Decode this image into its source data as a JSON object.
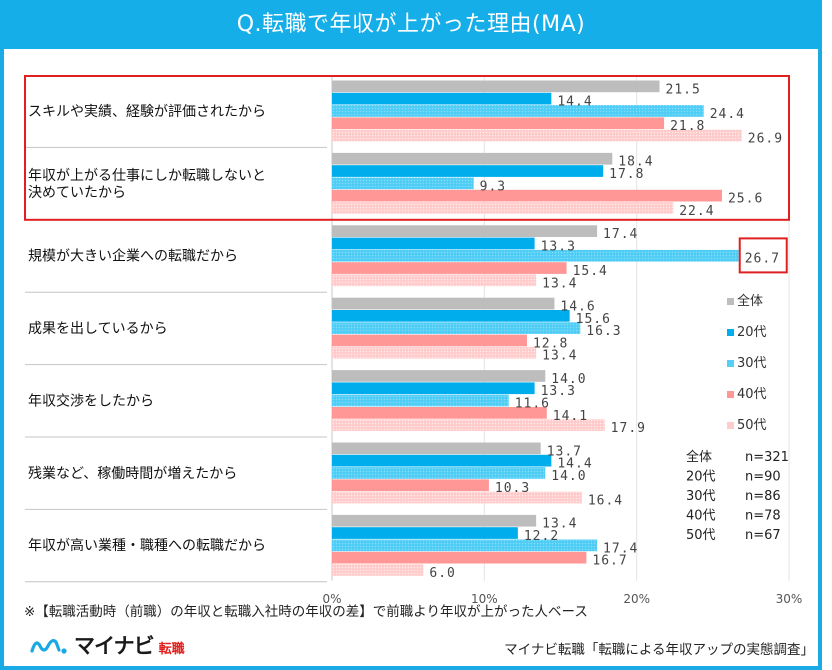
{
  "header": {
    "title": "Q.転職で年収が上がった理由(MA)"
  },
  "chart_data": {
    "type": "bar",
    "orientation": "horizontal",
    "title": "Q.転職で年収が上がった理由(MA)",
    "xlabel": "",
    "ylabel": "",
    "xlim": [
      0,
      30
    ],
    "x_ticks": [
      "0%",
      "10%",
      "20%",
      "30%"
    ],
    "x_tick_values": [
      0,
      10,
      20,
      30
    ],
    "grid": true,
    "legend_position": "right",
    "categories": [
      "スキルや実績、経験が評価されたから",
      "年収が上がる仕事にしか転職しないと\n決めていたから",
      "規模が大きい企業への転職だから",
      "成果を出しているから",
      "年収交渉をしたから",
      "残業など、稼働時間が増えたから",
      "年収が高い業種・職種への転職だから"
    ],
    "series": [
      {
        "name": "全体",
        "color": "#bdbdbd",
        "pattern": false,
        "values": [
          21.5,
          18.4,
          17.4,
          14.6,
          14.0,
          13.7,
          13.4
        ]
      },
      {
        "name": "20代",
        "color": "#00adec",
        "pattern": false,
        "values": [
          14.4,
          17.8,
          13.3,
          15.6,
          13.3,
          14.4,
          12.2
        ]
      },
      {
        "name": "30代",
        "color": "#55cff5",
        "pattern": true,
        "values": [
          24.4,
          9.3,
          26.7,
          16.3,
          11.6,
          14.0,
          17.4
        ]
      },
      {
        "name": "40代",
        "color": "#ff9797",
        "pattern": false,
        "values": [
          21.8,
          25.6,
          15.4,
          12.8,
          14.1,
          10.3,
          16.7
        ]
      },
      {
        "name": "50代",
        "color": "#ffcccc",
        "pattern": true,
        "values": [
          26.9,
          22.4,
          13.4,
          13.4,
          17.9,
          16.4,
          6.0
        ]
      }
    ],
    "sample_sizes": [
      {
        "label": "全体",
        "n": "n=321"
      },
      {
        "label": "20代",
        "n": "n=90"
      },
      {
        "label": "30代",
        "n": "n=86"
      },
      {
        "label": "40代",
        "n": "n=78"
      },
      {
        "label": "50代",
        "n": "n=67"
      }
    ],
    "highlights": [
      {
        "type": "category-group",
        "categories": [
          0,
          1
        ],
        "color": "#e02020"
      },
      {
        "type": "value",
        "category": 2,
        "series": "30代",
        "value": 26.7,
        "color": "#e02020"
      }
    ]
  },
  "footnote": "※【転職活動時（前職）の年収と転職入社時の年収の差】で前職より年収が上がった人ベース",
  "logo": {
    "kana": "マイナビ",
    "kanji": "転職"
  },
  "source": "マイナビ転職「転職による年収アップの実態調査」"
}
